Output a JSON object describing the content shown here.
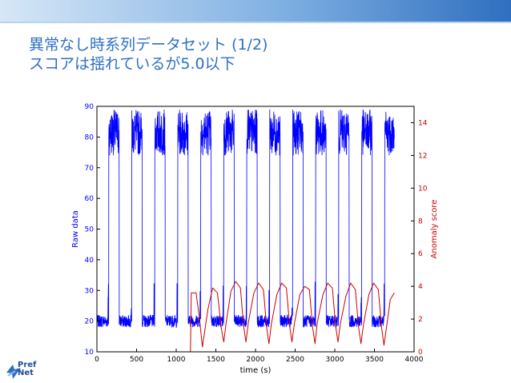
{
  "slide": {
    "title_line1": "異常なし時系列データセット (1/2)",
    "title_line2": "スコアは揺れているが5.0以下",
    "logo_line1": "Pref",
    "logo_line2": "Net"
  },
  "colors": {
    "raw": "#0000ff",
    "score": "#cc0000",
    "title": "#2e6fc4",
    "bar_start": "#d7e7f7",
    "bar_end": "#2f6fbf"
  },
  "chart_data": {
    "type": "line",
    "xlabel": "time (s)",
    "ylabel_left": "Raw data",
    "ylabel_right": "Anomaly score",
    "xlim": [
      0,
      4000
    ],
    "ylim_left": [
      10,
      90
    ],
    "ylim_right": [
      0,
      15
    ],
    "xticks": [
      "0",
      "500",
      "1000",
      "1500",
      "2000",
      "2500",
      "3000",
      "3500",
      "4000"
    ],
    "yticks_left": [
      "10",
      "20",
      "30",
      "40",
      "50",
      "60",
      "70",
      "80",
      "90"
    ],
    "yticks_right": [
      "0",
      "2",
      "4",
      "6",
      "8",
      "10",
      "12",
      "14"
    ],
    "grid": false,
    "series": [
      {
        "name": "Raw data",
        "axis": "left",
        "color": "#0000ff",
        "description_values": {
          "x_start": 0,
          "x_end": 3750,
          "cycle_period": 290,
          "cycle_starts": [
            150,
            440,
            730,
            1020,
            1310,
            1600,
            1890,
            2180,
            2470,
            2760,
            3050,
            3340,
            3630
          ],
          "high_duration": 130,
          "low_level": 20,
          "high_level": 80,
          "high_peak": 87,
          "spike_level": 33
        }
      },
      {
        "name": "Anomaly score",
        "axis": "right",
        "color": "#cc0000",
        "x": [
          0,
          1180,
          1190,
          1200,
          1250,
          1290,
          1330,
          1400,
          1460,
          1520,
          1570,
          1600,
          1630,
          1690,
          1750,
          1810,
          1850,
          1880,
          1910,
          1980,
          2040,
          2100,
          2140,
          2170,
          2200,
          2270,
          2330,
          2390,
          2430,
          2460,
          2490,
          2560,
          2620,
          2680,
          2720,
          2750,
          2780,
          2850,
          2910,
          2970,
          3010,
          3040,
          3070,
          3140,
          3200,
          3260,
          3300,
          3330,
          3360,
          3430,
          3490,
          3550,
          3590,
          3620,
          3650,
          3700,
          3750
        ],
        "y": [
          0,
          0,
          3.6,
          3.6,
          3.6,
          2.2,
          0.3,
          2.6,
          3.9,
          3.6,
          1.4,
          0.6,
          1.8,
          3.7,
          4.3,
          3.9,
          1.6,
          0.6,
          1.8,
          3.6,
          4.2,
          3.8,
          1.5,
          0.5,
          1.7,
          3.5,
          4.2,
          3.9,
          1.6,
          0.6,
          1.7,
          3.5,
          4.0,
          3.8,
          1.5,
          0.5,
          1.8,
          3.5,
          4.2,
          3.9,
          1.6,
          0.6,
          1.7,
          3.4,
          4.2,
          3.8,
          1.5,
          0.5,
          1.6,
          3.5,
          4.2,
          3.8,
          1.5,
          0.4,
          1.4,
          3.2,
          3.6
        ]
      }
    ]
  }
}
